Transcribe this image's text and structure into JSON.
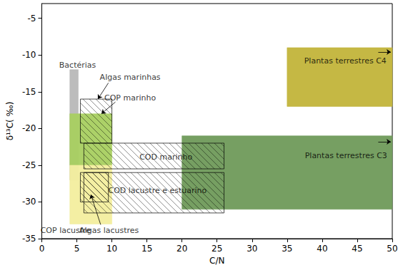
{
  "chart_data": {
    "type": "region",
    "x_label": "C/N",
    "y_label": "δ¹³C( ‰)",
    "xlim": [
      0,
      50
    ],
    "xticks": [
      0,
      5,
      10,
      15,
      20,
      25,
      30,
      35,
      40,
      45,
      50
    ],
    "ylim": [
      -35,
      -3
    ],
    "yticks": [
      -35,
      -30,
      -25,
      -20,
      -15,
      -10,
      -5
    ],
    "grid": false,
    "series": [
      {
        "name": "Plantas terrestres C3",
        "type": "filled",
        "color": "#6f9a5a",
        "x": [
          20,
          50
        ],
        "y": [
          -31,
          -21
        ],
        "label_at": [
          43.4,
          -23.7
        ],
        "arrow": [
          [
            48,
            -21.8
          ],
          [
            49.8,
            -21.8
          ]
        ]
      },
      {
        "name": "Plantas terrestres C4",
        "type": "filled",
        "color": "#c2b43a",
        "x": [
          35,
          50
        ],
        "y": [
          -17,
          -9
        ],
        "label_at": [
          43.3,
          -10.8
        ],
        "arrow": [
          [
            48,
            -9.6
          ],
          [
            49.8,
            -9.6
          ]
        ]
      },
      {
        "name": "Bactérias",
        "type": "filled",
        "color": "#b8b8b8",
        "x": [
          4,
          5.2
        ],
        "y": [
          -27,
          -12
        ],
        "label_at": [
          5.1,
          -11.4
        ]
      },
      {
        "name": "COP marinho",
        "type": "filled",
        "color": "#a8cf60",
        "x": [
          4,
          10
        ],
        "y": [
          -25,
          -18
        ],
        "label_at": [
          12.6,
          -15.8
        ],
        "arrow": [
          [
            10.5,
            -16.4
          ],
          [
            8.5,
            -18
          ]
        ]
      },
      {
        "name": "COP lacustre",
        "type": "filled",
        "color": "#f3ee9e",
        "x": [
          4,
          10
        ],
        "y": [
          -33,
          -25
        ],
        "label_at": [
          3.4,
          -33.9
        ]
      },
      {
        "name": "Algas marinhas",
        "type": "hatched",
        "color": "#000000",
        "x": [
          5.5,
          10
        ],
        "y": [
          -22,
          -16
        ],
        "label_at": [
          12.6,
          -13.0
        ],
        "arrow": [
          [
            9.5,
            -13.8
          ],
          [
            8,
            -16
          ]
        ]
      },
      {
        "name": "COD marinho",
        "type": "hatched",
        "color": "#000000",
        "x": [
          6,
          26
        ],
        "y": [
          -25.5,
          -22
        ],
        "label_at": [
          17.7,
          -23.9
        ]
      },
      {
        "name": "COD lacustre e estuarino",
        "type": "hatched",
        "color": "#000000",
        "x": [
          6,
          26
        ],
        "y": [
          -31.5,
          -26
        ],
        "label_at": [
          16.5,
          -28.5
        ]
      },
      {
        "name": "Algas lacustres",
        "type": "hatched",
        "color": "#000000",
        "x": [
          5.5,
          9.5
        ],
        "y": [
          -30,
          -26
        ],
        "label_at": [
          9.6,
          -33.9
        ],
        "arrow": [
          [
            8.4,
            -33.1
          ],
          [
            7,
            -29
          ]
        ]
      }
    ]
  }
}
